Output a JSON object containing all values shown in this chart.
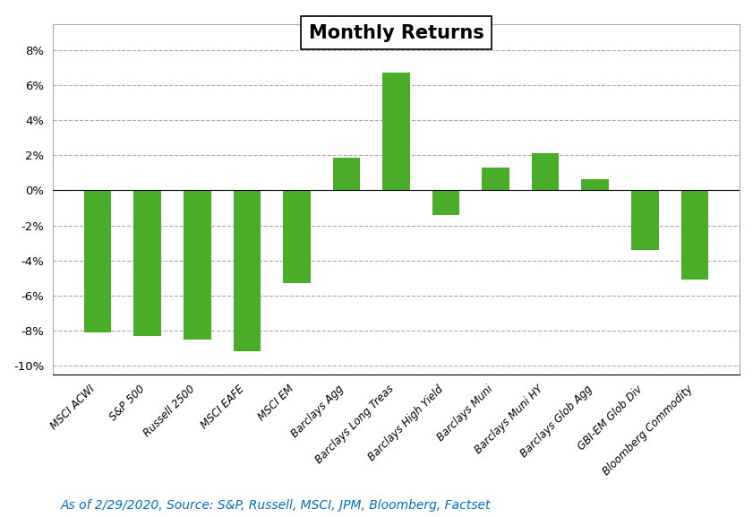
{
  "categories": [
    "MSCI ACWI",
    "S&P 500",
    "Russell 2500",
    "MSCI EAFE",
    "MSCI EM",
    "Barclays Agg",
    "Barclays Long Treas",
    "Barclays High Yield",
    "Barclays Muni",
    "Barclays Muni HY",
    "Barclays Glob Agg",
    "GBI-EM Glob Div",
    "Bloomberg Commodity"
  ],
  "values": [
    -8.1,
    -8.3,
    -8.5,
    -9.2,
    -5.3,
    1.85,
    6.7,
    -1.4,
    1.3,
    2.1,
    0.65,
    -3.4,
    -5.1
  ],
  "bar_color": "#4aad2a",
  "title": "Monthly Returns",
  "title_fontsize": 15,
  "title_fontweight": "bold",
  "ylim": [
    -10.5,
    9.5
  ],
  "yticks": [
    -10,
    -8,
    -6,
    -4,
    -2,
    0,
    2,
    4,
    6,
    8
  ],
  "ytick_labels": [
    "-10%",
    "-8%",
    "-6%",
    "-4%",
    "-2%",
    "0%",
    "2%",
    "4%",
    "6%",
    "8%"
  ],
  "background_color": "#ffffff",
  "grid_color": "#aaaaaa",
  "footnote": "As of 2/29/2020, Source: S&P, Russell, MSCI, JPM, Bloomberg, Factset",
  "footnote_color": "#0070c0",
  "footnote_fontsize": 10,
  "bar_width": 0.55
}
